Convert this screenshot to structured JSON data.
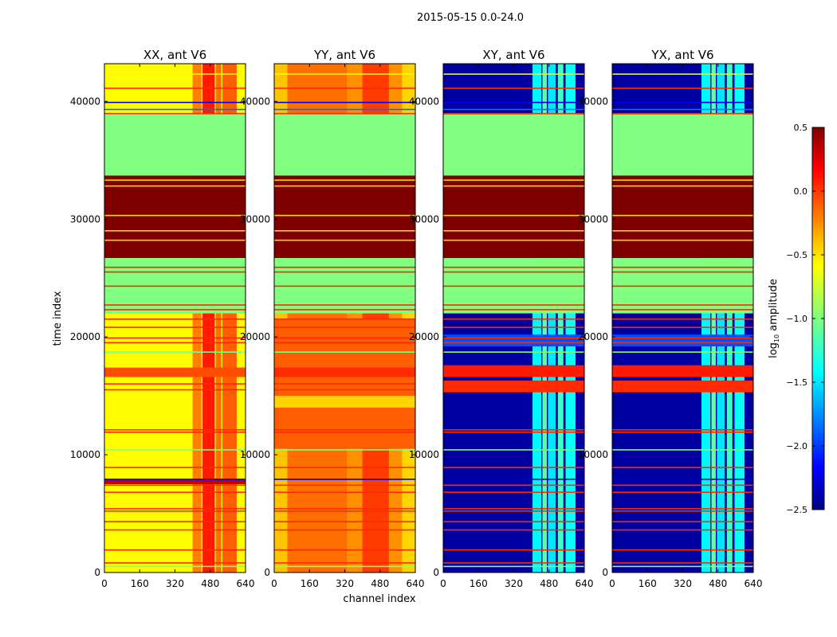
{
  "chart_data": {
    "type": "heatmap",
    "title": "2015-05-15 0.0-24.0",
    "xlabel": "channel index",
    "ylabel": "time index",
    "xlim": [
      0,
      640
    ],
    "ylim": [
      0,
      43200
    ],
    "xticks": [
      "0",
      "160",
      "320",
      "480",
      "640"
    ],
    "xtick_values": [
      0,
      160,
      320,
      480,
      640
    ],
    "yticks": [
      "0",
      "10000",
      "20000",
      "30000",
      "40000"
    ],
    "ytick_values": [
      0,
      10000,
      20000,
      30000,
      40000
    ],
    "colorbar": {
      "label": "log10 amplitude",
      "colormap": "jet",
      "range": [
        -2.5,
        0.5
      ],
      "ticks": [
        "0.5",
        "0.0",
        "−0.5",
        "−1.0",
        "−1.5",
        "−2.0",
        "−2.5"
      ],
      "tick_values": [
        0.5,
        0.0,
        -0.5,
        -1.0,
        -1.5,
        -2.0,
        -2.5
      ]
    },
    "common_rows": [
      {
        "t0": 33700,
        "t1": 38900,
        "v": -1.0
      },
      {
        "t0": 26700,
        "t1": 33700,
        "v": 0.5
      },
      {
        "t0": 22000,
        "t1": 26700,
        "v": -1.0
      }
    ],
    "lines": [
      {
        "t": 42300,
        "v": -0.6
      },
      {
        "t": 41100,
        "v": 0.0
      },
      {
        "t": 39900,
        "v": -2.2
      },
      {
        "t": 39300,
        "v": -1.8
      },
      {
        "t": 38950,
        "v": 0.0
      },
      {
        "t": 33300,
        "v": -0.5
      },
      {
        "t": 32800,
        "v": -0.5
      },
      {
        "t": 30300,
        "v": -0.5
      },
      {
        "t": 29000,
        "v": -0.5
      },
      {
        "t": 28200,
        "v": -0.5
      },
      {
        "t": 25900,
        "v": 0.0
      },
      {
        "t": 25500,
        "v": 0.0
      },
      {
        "t": 24300,
        "v": 0.0
      },
      {
        "t": 22700,
        "v": 0.0
      },
      {
        "t": 22300,
        "v": 0.0
      },
      {
        "t": 21500,
        "v": 0.0
      },
      {
        "t": 20800,
        "v": 0.0
      },
      {
        "t": 19900,
        "v": 0.0
      },
      {
        "t": 19500,
        "v": 0.0
      },
      {
        "t": 18700,
        "v": -1.0
      },
      {
        "t": 16000,
        "v": 0.0
      },
      {
        "t": 15500,
        "v": 0.0
      },
      {
        "t": 12100,
        "v": 0.0
      },
      {
        "t": 11900,
        "v": 0.0
      },
      {
        "t": 10400,
        "v": -1.0
      },
      {
        "t": 8900,
        "v": 0.0
      },
      {
        "t": 7900,
        "v": -2.3
      },
      {
        "t": 7400,
        "v": 0.0
      },
      {
        "t": 6800,
        "v": 0.0
      },
      {
        "t": 5400,
        "v": 0.0
      },
      {
        "t": 5200,
        "v": 0.0
      },
      {
        "t": 4300,
        "v": 0.0
      },
      {
        "t": 3600,
        "v": 0.0
      },
      {
        "t": 1900,
        "v": 0.0
      },
      {
        "t": 800,
        "v": 0.0
      },
      {
        "t": 500,
        "v": -1.0
      }
    ],
    "panels": [
      {
        "title": "XX, ant V6",
        "base": -0.62,
        "stripes": [
          {
            "c0": 400,
            "c1": 440,
            "v": -0.25
          },
          {
            "c0": 445,
            "c1": 500,
            "v": 0.05
          },
          {
            "c0": 505,
            "c1": 530,
            "v": -0.2
          },
          {
            "c0": 535,
            "c1": 600,
            "v": -0.15
          }
        ],
        "rows": [
          {
            "t0": 16600,
            "t1": 17400,
            "v": -0.1
          },
          {
            "t0": 7500,
            "t1": 7900,
            "v": 0.3
          }
        ]
      },
      {
        "title": "YY, ant V6",
        "base": -0.3,
        "stripes": [
          {
            "c0": 0,
            "c1": 60,
            "v": -0.45
          },
          {
            "c0": 60,
            "c1": 330,
            "v": -0.2
          },
          {
            "c0": 400,
            "c1": 520,
            "v": -0.05
          },
          {
            "c0": 580,
            "c1": 640,
            "v": -0.5
          }
        ],
        "rows": [
          {
            "t0": 10500,
            "t1": 21500,
            "v": -0.15
          },
          {
            "t0": 16600,
            "t1": 17400,
            "v": 0.0
          },
          {
            "t0": 14000,
            "t1": 15000,
            "v": -0.5
          }
        ]
      },
      {
        "title": "XY, ant V6",
        "base": -2.4,
        "stripes": [
          {
            "c0": 405,
            "c1": 445,
            "v": -1.4
          },
          {
            "c0": 450,
            "c1": 470,
            "v": -1.1
          },
          {
            "c0": 475,
            "c1": 510,
            "v": -1.45
          },
          {
            "c0": 520,
            "c1": 545,
            "v": -1.2
          },
          {
            "c0": 555,
            "c1": 600,
            "v": -1.35
          }
        ],
        "rows": [
          {
            "t0": 16600,
            "t1": 17600,
            "v": 0.05
          },
          {
            "t0": 15300,
            "t1": 16300,
            "v": 0.0
          },
          {
            "t0": 19200,
            "t1": 20200,
            "v": -1.9
          }
        ]
      },
      {
        "title": "YX, ant V6",
        "base": -2.4,
        "stripes": [
          {
            "c0": 405,
            "c1": 445,
            "v": -1.4
          },
          {
            "c0": 450,
            "c1": 470,
            "v": -1.1
          },
          {
            "c0": 475,
            "c1": 510,
            "v": -1.45
          },
          {
            "c0": 520,
            "c1": 545,
            "v": -1.2
          },
          {
            "c0": 555,
            "c1": 600,
            "v": -1.35
          }
        ],
        "rows": [
          {
            "t0": 16600,
            "t1": 17600,
            "v": 0.05
          },
          {
            "t0": 15300,
            "t1": 16300,
            "v": 0.0
          },
          {
            "t0": 19200,
            "t1": 20200,
            "v": -1.9
          }
        ]
      }
    ]
  }
}
